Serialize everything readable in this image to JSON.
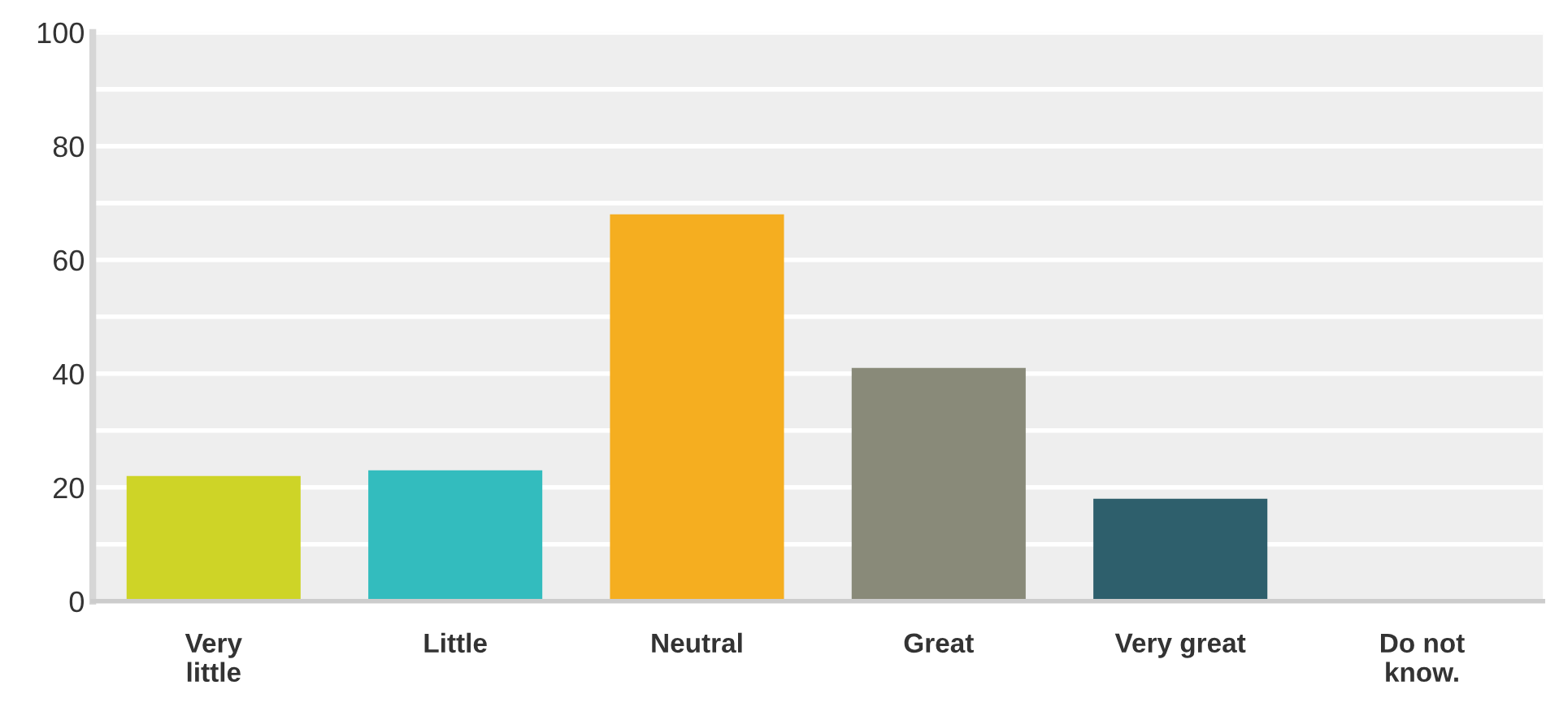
{
  "chart_data": {
    "type": "bar",
    "categories": [
      "Very\nlittle",
      "Little",
      "Neutral",
      "Great",
      "Very great",
      "Do not\nknow."
    ],
    "values": [
      22,
      23,
      68,
      41,
      18,
      0
    ],
    "colors": [
      "#ced427",
      "#33bcbe",
      "#f5ae20",
      "#898a79",
      "#2e5f6c",
      "#2e5f6c"
    ],
    "ylim": [
      0,
      100
    ],
    "yticks": [
      0,
      {
        "value": 10,
        "label": null
      },
      20,
      {
        "value": 30,
        "label": null
      },
      40,
      {
        "value": 50,
        "label": null
      },
      60,
      {
        "value": 70,
        "label": null
      },
      80,
      {
        "value": 90,
        "label": null
      },
      100
    ],
    "grid": "y",
    "legend": false
  }
}
